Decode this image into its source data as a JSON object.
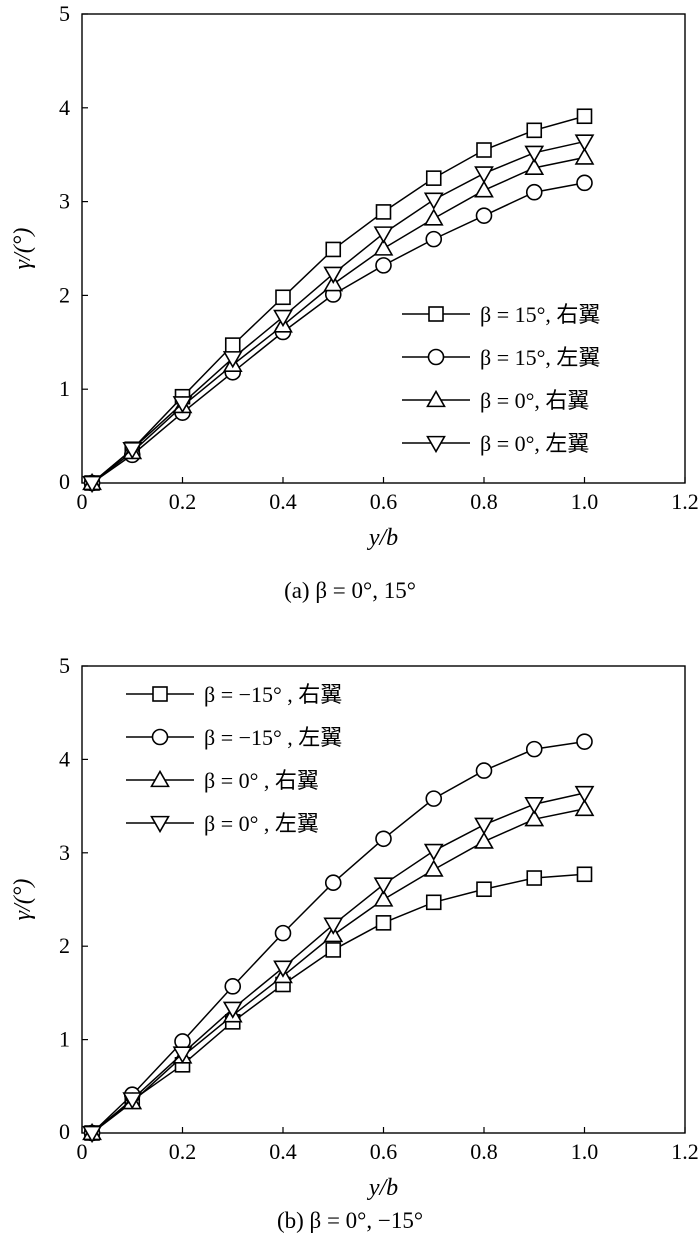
{
  "chart_data": [
    {
      "type": "line",
      "caption": "(a)  β = 0°, 15°",
      "xlabel": "y/b",
      "ylabel": "γ/(°)",
      "xlim": [
        0,
        1.2
      ],
      "ylim": [
        0,
        5
      ],
      "xticks": [
        "0",
        "0.2",
        "0.4",
        "0.6",
        "0.8",
        "1.0",
        "1.2"
      ],
      "yticks": [
        "1",
        "2",
        "3",
        "4",
        "5"
      ],
      "legend_position": "lower-right",
      "x": [
        0.02,
        0.1,
        0.2,
        0.3,
        0.4,
        0.5,
        0.6,
        0.7,
        0.8,
        0.9,
        1.0
      ],
      "series": [
        {
          "name": "β = 15°, 右翼",
          "marker": "square",
          "values": [
            0,
            0.36,
            0.92,
            1.47,
            1.98,
            2.49,
            2.89,
            3.25,
            3.55,
            3.76,
            3.91
          ]
        },
        {
          "name": "β = 15°, 左翼",
          "marker": "circle",
          "values": [
            0,
            0.3,
            0.75,
            1.18,
            1.61,
            2.01,
            2.32,
            2.6,
            2.85,
            3.1,
            3.2
          ]
        },
        {
          "name": "β = 0°, 右翼",
          "marker": "triangle-up",
          "values": [
            0,
            0.33,
            0.82,
            1.26,
            1.68,
            2.12,
            2.5,
            2.82,
            3.12,
            3.36,
            3.47
          ]
        },
        {
          "name": "β = 0°, 左翼",
          "marker": "triangle-down",
          "values": [
            0,
            0.36,
            0.85,
            1.33,
            1.77,
            2.23,
            2.66,
            3.02,
            3.3,
            3.52,
            3.64
          ]
        }
      ]
    },
    {
      "type": "line",
      "caption": "(b)  β = 0°, −15°",
      "xlabel": "y/b",
      "ylabel": "γ/(°)",
      "xlim": [
        0,
        1.2
      ],
      "ylim": [
        0,
        5
      ],
      "xticks": [
        "0",
        "0.2",
        "0.4",
        "0.6",
        "0.8",
        "1.0",
        "1.2"
      ],
      "yticks": [
        "1",
        "2",
        "3",
        "4",
        "5"
      ],
      "legend_position": "upper-left",
      "x": [
        0.02,
        0.1,
        0.2,
        0.3,
        0.4,
        0.5,
        0.6,
        0.7,
        0.8,
        0.9,
        1.0
      ],
      "series": [
        {
          "name": "β = −15° , 右翼",
          "marker": "square",
          "values": [
            0,
            0.35,
            0.73,
            1.19,
            1.59,
            1.96,
            2.25,
            2.47,
            2.61,
            2.73,
            2.77
          ]
        },
        {
          "name": "β = −15° , 左翼",
          "marker": "circle",
          "values": [
            0,
            0.41,
            0.98,
            1.57,
            2.14,
            2.68,
            3.15,
            3.58,
            3.88,
            4.11,
            4.19
          ]
        },
        {
          "name": "β = 0° , 右翼",
          "marker": "triangle-up",
          "values": [
            0,
            0.33,
            0.82,
            1.26,
            1.68,
            2.12,
            2.5,
            2.82,
            3.12,
            3.36,
            3.47
          ]
        },
        {
          "name": "β = 0° , 左翼",
          "marker": "triangle-down",
          "values": [
            0,
            0.36,
            0.85,
            1.33,
            1.77,
            2.23,
            2.66,
            3.02,
            3.3,
            3.52,
            3.64
          ]
        }
      ]
    }
  ]
}
